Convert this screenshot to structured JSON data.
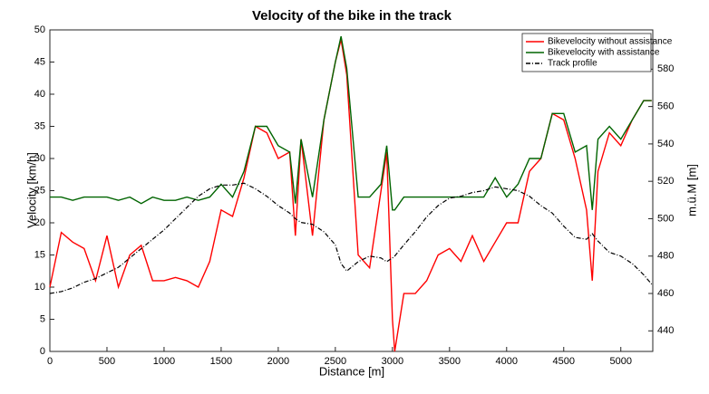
{
  "chart_data": {
    "type": "line",
    "title": "Velocity of the bike in the track",
    "x_label": "Distance [m]",
    "y_label": "Velocity [km/h]",
    "y2_label": "m.ü.M [m]",
    "x": [
      0,
      100,
      200,
      300,
      400,
      500,
      600,
      700,
      800,
      900,
      1000,
      1100,
      1200,
      1300,
      1400,
      1500,
      1600,
      1700,
      1800,
      1900,
      2000,
      2100,
      2150,
      2200,
      2300,
      2400,
      2500,
      2550,
      2600,
      2700,
      2800,
      2900,
      2950,
      3000,
      3020,
      3100,
      3200,
      3300,
      3400,
      3500,
      3600,
      3700,
      3800,
      3900,
      4000,
      4100,
      4200,
      4300,
      4400,
      4500,
      4600,
      4700,
      4750,
      4800,
      4900,
      5000,
      5100,
      5200,
      5270
    ],
    "series": [
      {
        "name": "Bikevelocity without assistance",
        "color": "#ff0000",
        "style": "solid",
        "values": [
          10,
          18.5,
          17,
          16,
          11,
          18,
          10,
          15,
          16.5,
          11,
          11,
          11.5,
          11,
          10,
          14,
          22,
          21,
          27,
          35,
          34,
          30,
          31,
          18,
          33,
          18,
          36,
          45,
          48.5,
          43,
          15,
          13,
          25,
          31,
          5,
          0,
          9,
          9,
          11,
          15,
          16,
          14,
          18,
          14,
          17,
          20,
          20,
          28,
          30,
          37,
          36,
          30,
          22,
          11,
          28,
          34,
          32,
          36,
          39,
          39
        ]
      },
      {
        "name": "Bikevelocity with assistance",
        "color": "#006400",
        "style": "solid",
        "values": [
          24,
          24,
          23.5,
          24,
          24,
          24,
          23.5,
          24,
          23,
          24,
          23.5,
          23.5,
          24,
          23.5,
          24,
          26,
          24,
          28,
          35,
          35,
          32,
          31,
          23,
          33,
          24,
          36,
          45,
          49,
          44,
          24,
          24,
          26,
          32,
          22,
          22,
          24,
          24,
          24,
          24,
          24,
          24,
          24,
          24,
          27,
          24,
          26,
          30,
          30,
          37,
          37,
          31,
          32,
          22,
          33,
          35,
          33,
          36,
          39,
          39
        ]
      },
      {
        "name": "Track profile",
        "color": "#000000",
        "style": "dashdot",
        "axis": "y2",
        "values": [
          460,
          461,
          463,
          466,
          468,
          471,
          474,
          479,
          484,
          489,
          494,
          500,
          506,
          512,
          516,
          518,
          518,
          519,
          516,
          512,
          507,
          503,
          500,
          498,
          497,
          493,
          486,
          476,
          472,
          477,
          480,
          479,
          477,
          479,
          480,
          486,
          493,
          501,
          507,
          511,
          512,
          514,
          515,
          517,
          516,
          515,
          512,
          507,
          503,
          496,
          490,
          489,
          492,
          488,
          482,
          480,
          476,
          470,
          465
        ]
      }
    ],
    "xlim": [
      0,
      5280
    ],
    "xticks": [
      0,
      500,
      1000,
      1500,
      2000,
      2500,
      3000,
      3500,
      4000,
      4500,
      5000
    ],
    "ylim": [
      0,
      50
    ],
    "yticks": [
      0,
      5,
      10,
      15,
      20,
      25,
      30,
      35,
      40,
      45,
      50
    ],
    "y2lim": [
      429,
      601
    ],
    "y2ticks": [
      440,
      460,
      480,
      500,
      520,
      540,
      560,
      580
    ],
    "grid": false,
    "legend": "top-right"
  }
}
